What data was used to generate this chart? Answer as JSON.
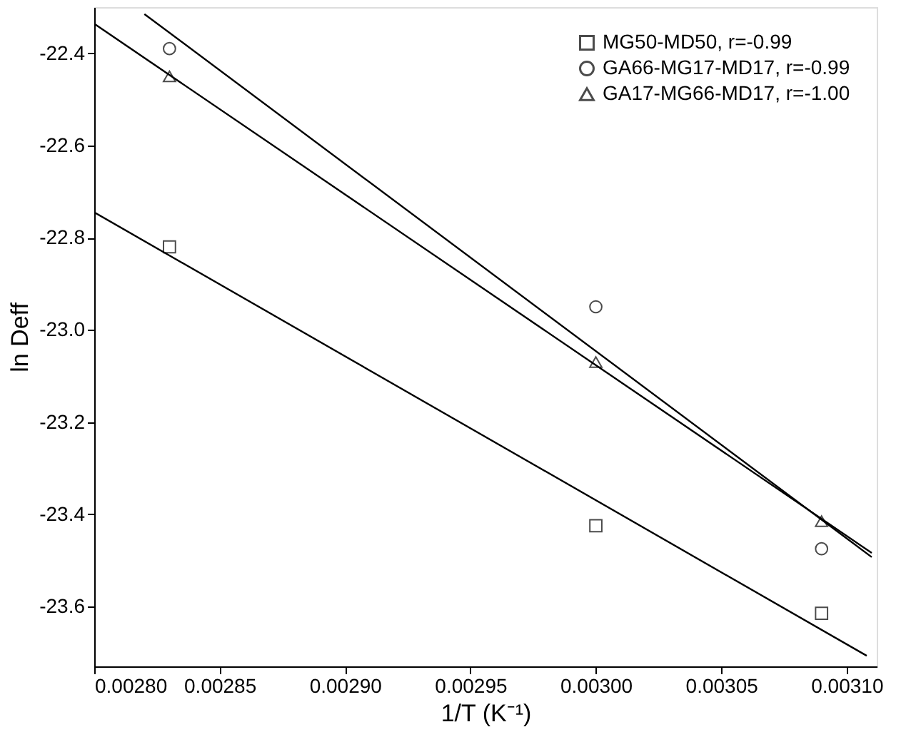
{
  "chart_data": {
    "type": "scatter",
    "xlabel": "1/T (K⁻¹)",
    "ylabel": "ln Deff",
    "xlim": [
      0.0028,
      0.003112
    ],
    "ylim": [
      -23.73,
      -22.3
    ],
    "xticks": [
      {
        "value": 0.0028,
        "label": "0.00280"
      },
      {
        "value": 0.00285,
        "label": "0.00285"
      },
      {
        "value": 0.0029,
        "label": "0.00290"
      },
      {
        "value": 0.00295,
        "label": "0.00295"
      },
      {
        "value": 0.003,
        "label": "0.00300"
      },
      {
        "value": 0.00305,
        "label": "0.00305"
      },
      {
        "value": 0.0031,
        "label": "0.00310"
      }
    ],
    "yticks": [
      {
        "value": -22.4,
        "label": "-22.4"
      },
      {
        "value": -22.6,
        "label": "-22.6"
      },
      {
        "value": -22.8,
        "label": "-22.8"
      },
      {
        "value": -23.0,
        "label": "-23.0"
      },
      {
        "value": -23.2,
        "label": "-23.2"
      },
      {
        "value": -23.4,
        "label": "-23.4"
      },
      {
        "value": -23.6,
        "label": "-23.6"
      }
    ],
    "grid": false,
    "legend": "top right",
    "series": [
      {
        "name": "MG50-MD50, r=-0.99",
        "marker": "square",
        "color": "#000000",
        "x": [
          0.00283,
          0.003,
          0.00309
        ],
        "values": [
          -22.82,
          -23.425,
          -23.615
        ]
      },
      {
        "name": "GA66-MG17-MD17, r=-0.99",
        "marker": "circle",
        "color": "#000000",
        "x": [
          0.00283,
          0.003,
          0.00309
        ],
        "values": [
          -22.39,
          -22.95,
          -23.475
        ]
      },
      {
        "name": "GA17-MG66-MD17, r=-1.00",
        "marker": "triangle",
        "color": "#000000",
        "x": [
          0.00283,
          0.003,
          0.00309
        ],
        "values": [
          -22.45,
          -23.07,
          -23.415
        ]
      },
      {
        "type": "line",
        "line_style": "solid",
        "color": "#000000",
        "x": [
          0.0028,
          0.003108
        ],
        "values": [
          -22.745,
          -23.707
        ]
      },
      {
        "type": "line",
        "line_style": "solid",
        "color": "#000000",
        "x": [
          0.00282,
          0.00311
        ],
        "values": [
          -22.315,
          -23.493
        ]
      },
      {
        "type": "line",
        "line_style": "solid",
        "color": "#000000",
        "x": [
          0.0028,
          0.00311
        ],
        "values": [
          -22.336,
          -23.484
        ]
      }
    ]
  }
}
